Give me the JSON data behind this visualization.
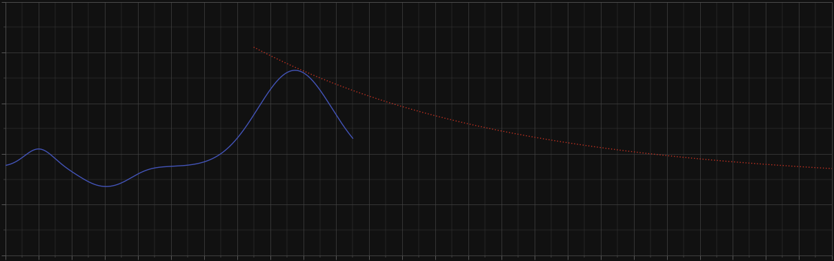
{
  "background_color": "#111111",
  "plot_bg_color": "#111111",
  "grid_color": "#444444",
  "line1_color": "#4455bb",
  "line2_color": "#cc3322",
  "line_width": 1.0,
  "figsize": [
    12.09,
    3.78
  ],
  "dpi": 100,
  "xlim": [
    0,
    100
  ],
  "ylim": [
    0,
    10
  ],
  "x_major_interval": 4,
  "x_minor_interval": 2,
  "y_major_interval": 2,
  "y_minor_interval": 1
}
